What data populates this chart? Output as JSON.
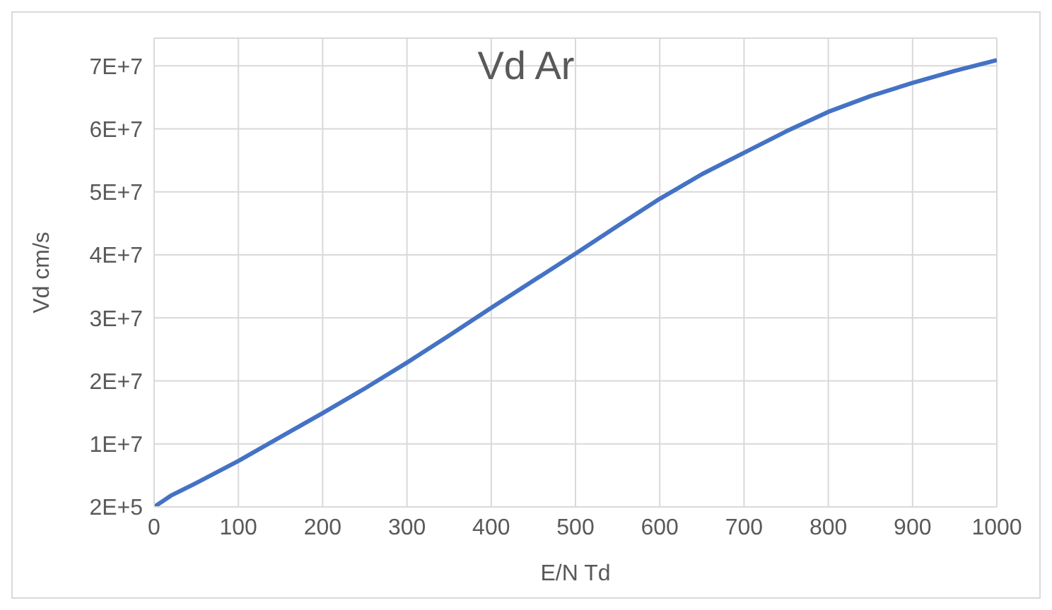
{
  "chart_data": {
    "type": "line",
    "title": "Vd Ar",
    "xlabel": "E/N Td",
    "ylabel": "Vd cm/s",
    "x": [
      0,
      20,
      50,
      100,
      150,
      200,
      250,
      300,
      350,
      400,
      450,
      500,
      550,
      600,
      650,
      700,
      750,
      800,
      850,
      900,
      950,
      1000
    ],
    "series": [
      {
        "color": "#4472c4",
        "values": [
          200000,
          2000000,
          4000000,
          7500000,
          11300000,
          15100000,
          19000000,
          23100000,
          27400000,
          31800000,
          36100000,
          40400000,
          44800000,
          49100000,
          53000000,
          56400000,
          59800000,
          62900000,
          65400000,
          67500000,
          69400000,
          71100000
        ]
      }
    ],
    "xlim": [
      0,
      1000
    ],
    "xticks": [
      0,
      100,
      200,
      300,
      400,
      500,
      600,
      700,
      800,
      900,
      1000
    ],
    "ylim": [
      200000,
      74600000
    ],
    "yticks": [
      {
        "value": 200000,
        "label": "2E+5"
      },
      {
        "value": 10200000,
        "label": "1E+7"
      },
      {
        "value": 20200000,
        "label": "2E+7"
      },
      {
        "value": 30200000,
        "label": "3E+7"
      },
      {
        "value": 40200000,
        "label": "4E+7"
      },
      {
        "value": 50200000,
        "label": "5E+7"
      },
      {
        "value": 60200000,
        "label": "6E+7"
      },
      {
        "value": 70200000,
        "label": "7E+7"
      }
    ],
    "grid": true,
    "marker": "none",
    "line_style": "solid",
    "legend": false
  }
}
